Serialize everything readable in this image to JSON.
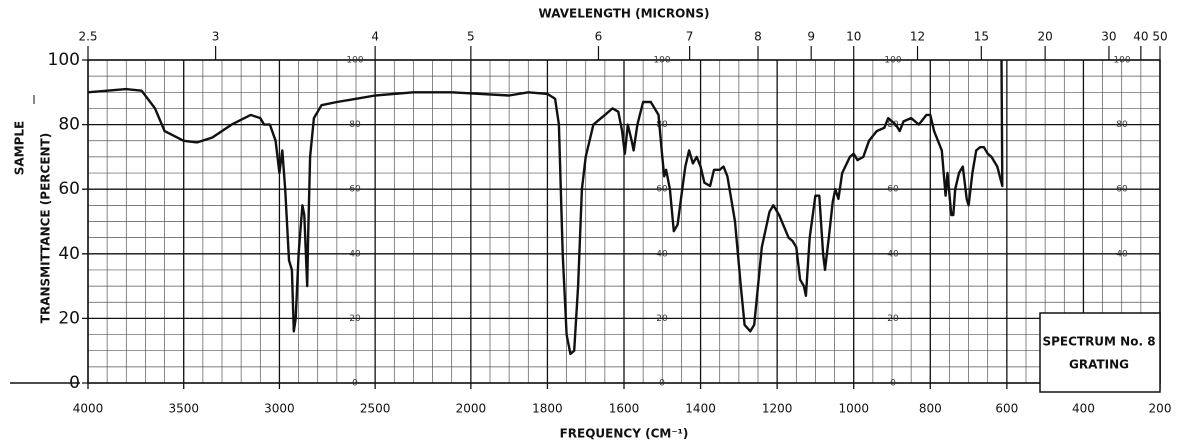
{
  "chart_data": {
    "type": "line",
    "title": "WAVELENGTH (MICRONS)",
    "xlabel": "FREQUENCY (CM⁻¹)",
    "ylabel": "TRANSMITTANCE (PERCENT)",
    "ylabel_note": "SAMPLE",
    "box_lines": [
      "SPECTRUM No. 8",
      "GRATING"
    ],
    "color": "#111111",
    "xlim": [
      4000,
      200
    ],
    "x_scale_change": {
      "at": 2000,
      "factor": 2
    },
    "xticks": [
      4000,
      3500,
      3000,
      2500,
      2000,
      1800,
      1600,
      1400,
      1200,
      1000,
      800,
      600,
      400,
      200
    ],
    "ylim": [
      0,
      100
    ],
    "yticks": [
      0,
      20,
      40,
      60,
      80,
      100
    ],
    "x2_factor": 10000,
    "x2ticks": [
      2.5,
      3,
      4,
      5,
      6,
      7,
      8,
      9,
      10,
      12,
      15,
      20,
      30,
      40,
      50
    ],
    "grid": true,
    "minor_grid": {
      "x_step_high": 100,
      "x_step_low": 50,
      "y_step": 5
    },
    "x": [
      4000,
      3800,
      3720,
      3650,
      3600,
      3500,
      3430,
      3350,
      3250,
      3150,
      3100,
      3080,
      3050,
      3020,
      3000,
      2985,
      2970,
      2950,
      2935,
      2925,
      2915,
      2900,
      2880,
      2870,
      2855,
      2850,
      2840,
      2820,
      2780,
      2700,
      2600,
      2500,
      2300,
      2100,
      1900,
      1850,
      1800,
      1780,
      1770,
      1760,
      1750,
      1740,
      1730,
      1720,
      1710,
      1700,
      1680,
      1650,
      1630,
      1615,
      1605,
      1598,
      1590,
      1580,
      1575,
      1565,
      1550,
      1530,
      1510,
      1500,
      1495,
      1490,
      1480,
      1470,
      1460,
      1450,
      1440,
      1430,
      1420,
      1410,
      1400,
      1390,
      1375,
      1365,
      1350,
      1340,
      1330,
      1310,
      1295,
      1285,
      1270,
      1260,
      1250,
      1240,
      1220,
      1210,
      1195,
      1170,
      1160,
      1150,
      1140,
      1130,
      1125,
      1115,
      1100,
      1090,
      1080,
      1075,
      1065,
      1055,
      1048,
      1040,
      1030,
      1010,
      1000,
      990,
      975,
      960,
      940,
      920,
      910,
      890,
      880,
      870,
      850,
      830,
      810,
      800,
      790,
      770,
      760,
      755,
      745,
      740,
      735,
      725,
      715,
      705,
      700,
      690,
      680,
      670,
      660,
      650,
      640,
      625,
      612,
      614
    ],
    "values": [
      90,
      91,
      90.5,
      85,
      78,
      75,
      74.5,
      76,
      80,
      83,
      82,
      80,
      80,
      75,
      65,
      72,
      60,
      38,
      35,
      16,
      20,
      40,
      55,
      52,
      30,
      45,
      70,
      82,
      86,
      87,
      88,
      89,
      90,
      90,
      89,
      90,
      89.5,
      88,
      80,
      40,
      15,
      9,
      10,
      30,
      60,
      70,
      80,
      83,
      85,
      84,
      78,
      71,
      80,
      75,
      72,
      80,
      87,
      87,
      83,
      70,
      64,
      66,
      60,
      47,
      49,
      58,
      67,
      72,
      68,
      70,
      67,
      62,
      61,
      66,
      66,
      67,
      64,
      50,
      30,
      18,
      16,
      18,
      30,
      42,
      53,
      55,
      52,
      45,
      44,
      42,
      32,
      30,
      27,
      45,
      58,
      58,
      40,
      35,
      45,
      56,
      60,
      57,
      65,
      70,
      71,
      69,
      70,
      75,
      78,
      79,
      82,
      80,
      78,
      81,
      82,
      80,
      83,
      83,
      78,
      72,
      58,
      65,
      52,
      52,
      60,
      65,
      67,
      57,
      55,
      65,
      72,
      73,
      73,
      71,
      70,
      67,
      61,
      100
    ]
  }
}
